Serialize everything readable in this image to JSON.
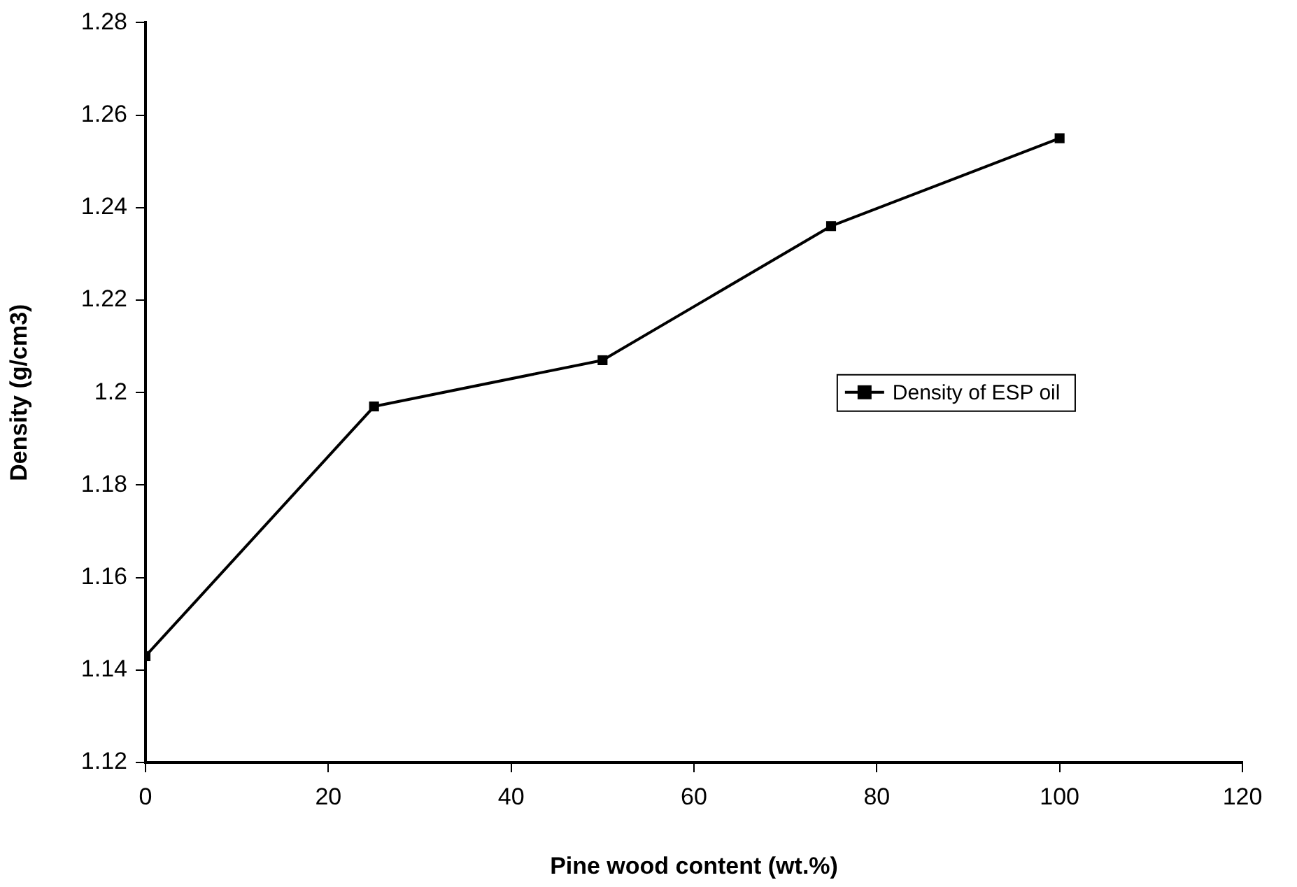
{
  "chart_data": {
    "type": "line",
    "xlabel": "Pine wood content (wt.%)",
    "ylabel": "Density (g/cm3)",
    "x": [
      0,
      25,
      50,
      75,
      100
    ],
    "series": [
      {
        "name": "Density of ESP oil",
        "color": "#000000",
        "values": [
          1.143,
          1.197,
          1.207,
          1.236,
          1.255
        ]
      }
    ],
    "xlim": [
      0,
      120
    ],
    "xticks": [
      0,
      20,
      40,
      60,
      80,
      100,
      120
    ],
    "ylim": [
      1.12,
      1.28
    ],
    "yticks": [
      1.12,
      1.14,
      1.16,
      1.18,
      1.2,
      1.22,
      1.24,
      1.26,
      1.28
    ],
    "grid": false,
    "legend": "right",
    "marker": "square",
    "line_style": "solid"
  }
}
